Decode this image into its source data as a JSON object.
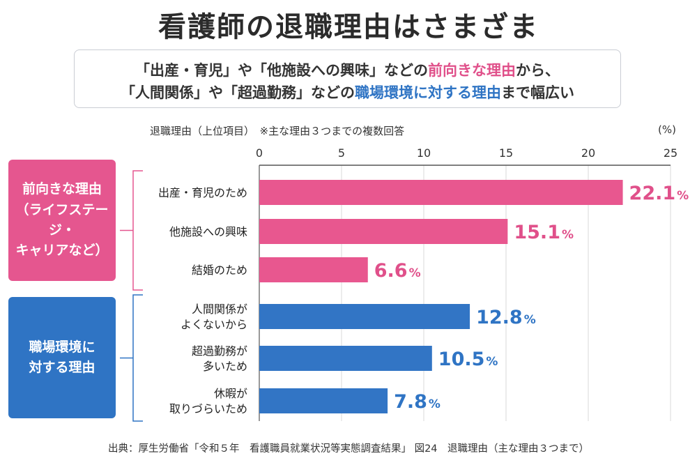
{
  "title": "看護師の退職理由はさまざま",
  "subtitle": {
    "line1_a": "「出産・育児」や「他施設への興味」などの",
    "line1_highlight": "前向きな理由",
    "line1_b": "から、",
    "line2_a": "「人間関係」や「超過勤務」などの",
    "line2_highlight": "職場環境に対する理由",
    "line2_b": "まで幅広い"
  },
  "axis_caption": "退職理由（上位項目）　※主な理由３つまでの複数回答",
  "axis_unit": "(%)",
  "groups": [
    {
      "label": "前向きな理由\n（ライフステージ・\nキャリアなど）",
      "color": "#e5568f"
    },
    {
      "label": "職場環境に\n対する理由",
      "color": "#2f74c4"
    }
  ],
  "footer": "出典：厚生労働省「令和５年　看護職員就業状況等実態調査結果」 図24　退職理由（主な理由３つまで）",
  "chart_data": {
    "type": "bar",
    "orientation": "horizontal",
    "xlim": [
      0,
      25
    ],
    "xticks": [
      "0",
      "5",
      "10",
      "15",
      "20",
      "25"
    ],
    "xtick_values": [
      0,
      5,
      10,
      15,
      20,
      25
    ],
    "grid": true,
    "unit": "%",
    "categories": [
      "出産・育児のため",
      "他施設への興味",
      "結婚のため",
      "人間関係が\nよくないから",
      "超過勤務が\n多いため",
      "休暇が\n取りづらいため"
    ],
    "values": [
      22.1,
      15.1,
      6.6,
      12.8,
      10.5,
      7.8
    ],
    "value_labels": [
      "22.1",
      "15.1",
      "6.6",
      "12.8",
      "10.5",
      "7.8"
    ],
    "group_index": [
      0,
      0,
      0,
      1,
      1,
      1
    ],
    "colors": [
      "#e8578f",
      "#e8578f",
      "#e8578f",
      "#3275c5",
      "#3275c5",
      "#3275c5"
    ],
    "label_colors": [
      "#e0508a",
      "#e0508a",
      "#e0508a",
      "#2f74c4",
      "#2f74c4",
      "#2f74c4"
    ]
  }
}
